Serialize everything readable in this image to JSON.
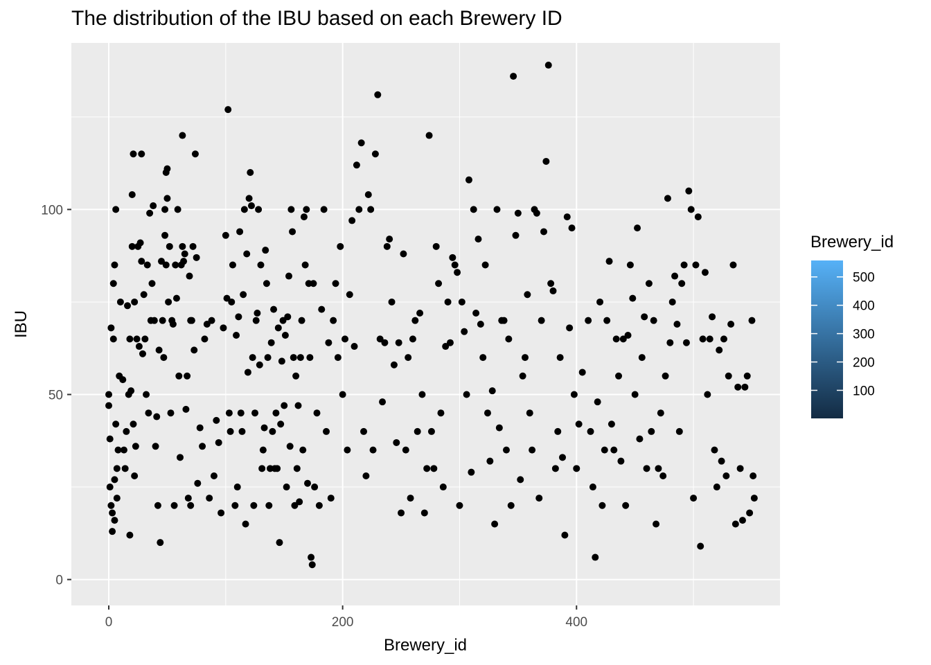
{
  "chart_data": {
    "type": "scatter",
    "title": "The distribution of the IBU based on each Brewery ID",
    "xlabel": "Brewery_id",
    "ylabel": "IBU",
    "xlim": [
      -32,
      574
    ],
    "ylim": [
      -7,
      145
    ],
    "x_ticks": [
      0,
      200,
      400
    ],
    "x_tick_labels": [
      "0",
      "200",
      "400"
    ],
    "x_minor_ticks": [
      100,
      300,
      500
    ],
    "y_ticks": [
      0,
      50,
      100
    ],
    "y_tick_labels": [
      "0",
      "50",
      "100"
    ],
    "y_minor_ticks": [
      25,
      75,
      125
    ],
    "grid": true,
    "panel_background": "#ebebeb",
    "grid_color": "#ffffff",
    "point_color": "#000000",
    "legend": {
      "title": "Brewery_id",
      "position": "right",
      "type": "colorbar",
      "low_color": "#132b43",
      "high_color": "#56b1f7",
      "range": [
        1,
        558
      ],
      "breaks": [
        100,
        200,
        300,
        400,
        500
      ],
      "break_labels": [
        "100",
        "200",
        "300",
        "400",
        "500"
      ]
    },
    "points": [
      [
        0,
        50
      ],
      [
        0,
        47
      ],
      [
        1,
        38
      ],
      [
        1,
        25
      ],
      [
        2,
        68
      ],
      [
        2,
        20
      ],
      [
        3,
        18
      ],
      [
        3,
        13
      ],
      [
        4,
        80
      ],
      [
        4,
        65
      ],
      [
        5,
        85
      ],
      [
        5,
        27
      ],
      [
        5,
        16
      ],
      [
        6,
        100
      ],
      [
        6,
        42
      ],
      [
        7,
        30
      ],
      [
        7,
        22
      ],
      [
        8,
        35
      ],
      [
        9,
        55
      ],
      [
        10,
        75
      ],
      [
        12,
        54
      ],
      [
        13,
        35
      ],
      [
        14,
        30
      ],
      [
        15,
        40
      ],
      [
        16,
        74
      ],
      [
        17,
        50
      ],
      [
        18,
        65
      ],
      [
        18,
        12
      ],
      [
        19,
        51
      ],
      [
        20,
        104
      ],
      [
        20,
        90
      ],
      [
        21,
        115
      ],
      [
        21,
        42
      ],
      [
        22,
        75
      ],
      [
        22,
        28
      ],
      [
        23,
        36
      ],
      [
        24,
        65
      ],
      [
        25,
        90
      ],
      [
        26,
        63
      ],
      [
        27,
        91
      ],
      [
        28,
        115
      ],
      [
        28,
        86
      ],
      [
        29,
        61
      ],
      [
        30,
        77
      ],
      [
        31,
        65
      ],
      [
        32,
        50
      ],
      [
        33,
        85
      ],
      [
        34,
        45
      ],
      [
        35,
        99
      ],
      [
        36,
        70
      ],
      [
        37,
        80
      ],
      [
        38,
        101
      ],
      [
        39,
        70
      ],
      [
        40,
        36
      ],
      [
        41,
        44
      ],
      [
        42,
        20
      ],
      [
        43,
        62
      ],
      [
        44,
        10
      ],
      [
        45,
        86
      ],
      [
        46,
        70
      ],
      [
        47,
        60
      ],
      [
        48,
        100
      ],
      [
        48,
        93
      ],
      [
        49,
        110
      ],
      [
        49,
        85
      ],
      [
        50,
        111
      ],
      [
        50,
        103
      ],
      [
        51,
        75
      ],
      [
        52,
        90
      ],
      [
        53,
        45
      ],
      [
        54,
        70
      ],
      [
        55,
        69
      ],
      [
        56,
        20
      ],
      [
        57,
        85
      ],
      [
        58,
        76
      ],
      [
        59,
        100
      ],
      [
        60,
        55
      ],
      [
        61,
        33
      ],
      [
        62,
        85
      ],
      [
        63,
        120
      ],
      [
        63,
        90
      ],
      [
        64,
        86
      ],
      [
        65,
        88
      ],
      [
        66,
        46
      ],
      [
        67,
        55
      ],
      [
        68,
        22
      ],
      [
        69,
        82
      ],
      [
        70,
        70
      ],
      [
        70,
        20
      ],
      [
        71,
        70
      ],
      [
        72,
        90
      ],
      [
        73,
        62
      ],
      [
        74,
        115
      ],
      [
        75,
        87
      ],
      [
        76,
        26
      ],
      [
        78,
        41
      ],
      [
        80,
        36
      ],
      [
        82,
        65
      ],
      [
        84,
        69
      ],
      [
        86,
        22
      ],
      [
        88,
        70
      ],
      [
        90,
        28
      ],
      [
        92,
        43
      ],
      [
        94,
        37
      ],
      [
        96,
        18
      ],
      [
        98,
        68
      ],
      [
        100,
        93
      ],
      [
        101,
        76
      ],
      [
        102,
        127
      ],
      [
        103,
        45
      ],
      [
        104,
        40
      ],
      [
        105,
        75
      ],
      [
        106,
        85
      ],
      [
        108,
        20
      ],
      [
        109,
        66
      ],
      [
        110,
        25
      ],
      [
        111,
        71
      ],
      [
        112,
        94
      ],
      [
        113,
        45
      ],
      [
        114,
        40
      ],
      [
        115,
        77
      ],
      [
        116,
        100
      ],
      [
        117,
        15
      ],
      [
        118,
        88
      ],
      [
        119,
        56
      ],
      [
        120,
        103
      ],
      [
        121,
        110
      ],
      [
        122,
        101
      ],
      [
        123,
        60
      ],
      [
        124,
        20
      ],
      [
        125,
        45
      ],
      [
        126,
        70
      ],
      [
        127,
        72
      ],
      [
        128,
        100
      ],
      [
        129,
        58
      ],
      [
        130,
        85
      ],
      [
        131,
        30
      ],
      [
        132,
        35
      ],
      [
        133,
        41
      ],
      [
        134,
        89
      ],
      [
        135,
        80
      ],
      [
        136,
        60
      ],
      [
        137,
        20
      ],
      [
        138,
        30
      ],
      [
        139,
        64
      ],
      [
        140,
        40
      ],
      [
        141,
        73
      ],
      [
        142,
        30
      ],
      [
        143,
        45
      ],
      [
        144,
        30
      ],
      [
        145,
        68
      ],
      [
        146,
        10
      ],
      [
        147,
        42
      ],
      [
        148,
        59
      ],
      [
        149,
        70
      ],
      [
        150,
        47
      ],
      [
        151,
        66
      ],
      [
        152,
        25
      ],
      [
        153,
        71
      ],
      [
        154,
        82
      ],
      [
        155,
        36
      ],
      [
        156,
        100
      ],
      [
        157,
        94
      ],
      [
        158,
        60
      ],
      [
        159,
        20
      ],
      [
        160,
        55
      ],
      [
        161,
        30
      ],
      [
        162,
        47
      ],
      [
        163,
        21
      ],
      [
        164,
        60
      ],
      [
        165,
        70
      ],
      [
        166,
        35
      ],
      [
        167,
        98
      ],
      [
        168,
        85
      ],
      [
        169,
        100
      ],
      [
        170,
        26
      ],
      [
        171,
        80
      ],
      [
        172,
        60
      ],
      [
        173,
        6
      ],
      [
        174,
        4
      ],
      [
        175,
        80
      ],
      [
        176,
        25
      ],
      [
        178,
        45
      ],
      [
        180,
        20
      ],
      [
        182,
        73
      ],
      [
        184,
        100
      ],
      [
        186,
        40
      ],
      [
        188,
        64
      ],
      [
        190,
        22
      ],
      [
        192,
        70
      ],
      [
        194,
        80
      ],
      [
        196,
        60
      ],
      [
        198,
        90
      ],
      [
        200,
        50
      ],
      [
        202,
        65
      ],
      [
        204,
        35
      ],
      [
        206,
        77
      ],
      [
        208,
        97
      ],
      [
        210,
        63
      ],
      [
        212,
        112
      ],
      [
        214,
        100
      ],
      [
        216,
        118
      ],
      [
        218,
        40
      ],
      [
        220,
        28
      ],
      [
        222,
        104
      ],
      [
        224,
        100
      ],
      [
        226,
        35
      ],
      [
        228,
        115
      ],
      [
        230,
        131
      ],
      [
        232,
        65
      ],
      [
        234,
        48
      ],
      [
        236,
        64
      ],
      [
        238,
        90
      ],
      [
        240,
        92
      ],
      [
        242,
        75
      ],
      [
        244,
        58
      ],
      [
        246,
        37
      ],
      [
        248,
        64
      ],
      [
        250,
        18
      ],
      [
        252,
        88
      ],
      [
        254,
        35
      ],
      [
        256,
        60
      ],
      [
        258,
        22
      ],
      [
        260,
        65
      ],
      [
        262,
        70
      ],
      [
        264,
        40
      ],
      [
        266,
        72
      ],
      [
        268,
        50
      ],
      [
        270,
        18
      ],
      [
        272,
        30
      ],
      [
        274,
        120
      ],
      [
        276,
        40
      ],
      [
        278,
        30
      ],
      [
        280,
        90
      ],
      [
        282,
        80
      ],
      [
        284,
        45
      ],
      [
        286,
        25
      ],
      [
        288,
        63
      ],
      [
        290,
        75
      ],
      [
        292,
        64
      ],
      [
        294,
        87
      ],
      [
        296,
        85
      ],
      [
        298,
        83
      ],
      [
        300,
        20
      ],
      [
        302,
        75
      ],
      [
        304,
        67
      ],
      [
        306,
        50
      ],
      [
        308,
        108
      ],
      [
        310,
        29
      ],
      [
        312,
        100
      ],
      [
        314,
        72
      ],
      [
        316,
        92
      ],
      [
        318,
        69
      ],
      [
        320,
        60
      ],
      [
        322,
        85
      ],
      [
        324,
        45
      ],
      [
        326,
        32
      ],
      [
        328,
        51
      ],
      [
        330,
        15
      ],
      [
        332,
        100
      ],
      [
        334,
        41
      ],
      [
        336,
        70
      ],
      [
        338,
        70
      ],
      [
        340,
        35
      ],
      [
        342,
        65
      ],
      [
        344,
        20
      ],
      [
        346,
        136
      ],
      [
        348,
        93
      ],
      [
        350,
        99
      ],
      [
        352,
        27
      ],
      [
        354,
        55
      ],
      [
        356,
        60
      ],
      [
        358,
        77
      ],
      [
        360,
        45
      ],
      [
        362,
        35
      ],
      [
        364,
        100
      ],
      [
        366,
        99
      ],
      [
        368,
        22
      ],
      [
        370,
        70
      ],
      [
        372,
        94
      ],
      [
        374,
        113
      ],
      [
        376,
        139
      ],
      [
        378,
        80
      ],
      [
        380,
        78
      ],
      [
        382,
        30
      ],
      [
        384,
        40
      ],
      [
        386,
        60
      ],
      [
        388,
        33
      ],
      [
        390,
        12
      ],
      [
        392,
        98
      ],
      [
        394,
        68
      ],
      [
        396,
        95
      ],
      [
        398,
        50
      ],
      [
        400,
        30
      ],
      [
        402,
        42
      ],
      [
        405,
        56
      ],
      [
        410,
        70
      ],
      [
        412,
        40
      ],
      [
        414,
        25
      ],
      [
        416,
        6
      ],
      [
        418,
        48
      ],
      [
        420,
        75
      ],
      [
        422,
        20
      ],
      [
        424,
        35
      ],
      [
        426,
        70
      ],
      [
        428,
        86
      ],
      [
        430,
        42
      ],
      [
        432,
        35
      ],
      [
        434,
        65
      ],
      [
        436,
        55
      ],
      [
        438,
        32
      ],
      [
        440,
        65
      ],
      [
        442,
        20
      ],
      [
        444,
        66
      ],
      [
        446,
        85
      ],
      [
        448,
        76
      ],
      [
        450,
        50
      ],
      [
        452,
        95
      ],
      [
        454,
        38
      ],
      [
        456,
        60
      ],
      [
        458,
        71
      ],
      [
        460,
        30
      ],
      [
        462,
        80
      ],
      [
        464,
        40
      ],
      [
        466,
        70
      ],
      [
        468,
        15
      ],
      [
        470,
        30
      ],
      [
        472,
        45
      ],
      [
        474,
        28
      ],
      [
        476,
        55
      ],
      [
        478,
        103
      ],
      [
        480,
        64
      ],
      [
        482,
        75
      ],
      [
        484,
        82
      ],
      [
        486,
        69
      ],
      [
        488,
        40
      ],
      [
        490,
        80
      ],
      [
        492,
        85
      ],
      [
        494,
        64
      ],
      [
        496,
        105
      ],
      [
        498,
        100
      ],
      [
        500,
        22
      ],
      [
        502,
        85
      ],
      [
        504,
        98
      ],
      [
        506,
        9
      ],
      [
        508,
        65
      ],
      [
        510,
        83
      ],
      [
        512,
        50
      ],
      [
        514,
        65
      ],
      [
        516,
        71
      ],
      [
        518,
        35
      ],
      [
        520,
        25
      ],
      [
        522,
        62
      ],
      [
        524,
        32
      ],
      [
        526,
        65
      ],
      [
        528,
        28
      ],
      [
        530,
        55
      ],
      [
        532,
        69
      ],
      [
        534,
        85
      ],
      [
        536,
        15
      ],
      [
        538,
        52
      ],
      [
        540,
        30
      ],
      [
        542,
        16
      ],
      [
        544,
        52
      ],
      [
        546,
        55
      ],
      [
        548,
        18
      ],
      [
        550,
        70
      ],
      [
        551,
        28
      ],
      [
        552,
        22
      ]
    ]
  }
}
